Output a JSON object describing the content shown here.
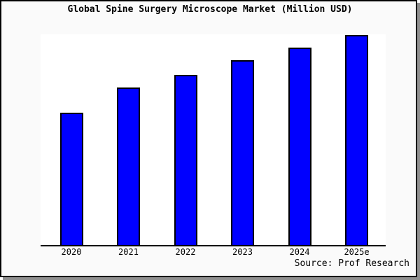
{
  "figure": {
    "background_color": "#fafafa",
    "plot_background_color": "#ffffff",
    "frame_border_color": "#000000",
    "frame_shadow_color": "#8f8f8f"
  },
  "title": "Global Spine Surgery Microscope Market (Million USD)",
  "source": "Source: Prof Research",
  "chart_data": {
    "type": "bar",
    "title": "Global Spine Surgery Microscope Market (Million USD)",
    "categories": [
      "2020",
      "2021",
      "2022",
      "2023",
      "2024",
      "2025e"
    ],
    "values": [
      63,
      75,
      81,
      88,
      94,
      100
    ],
    "values_note": "no y-axis ticks shown; values are relative bar heights, tallest bar (2025e) = 100",
    "xlabel": "",
    "ylabel": "",
    "ylim": [
      0,
      100
    ],
    "grid": false,
    "legend": false,
    "y_axis_visible": false,
    "bar_color": "#0000ff",
    "bar_border_color": "#000000",
    "axis_line_color": "#000000"
  }
}
